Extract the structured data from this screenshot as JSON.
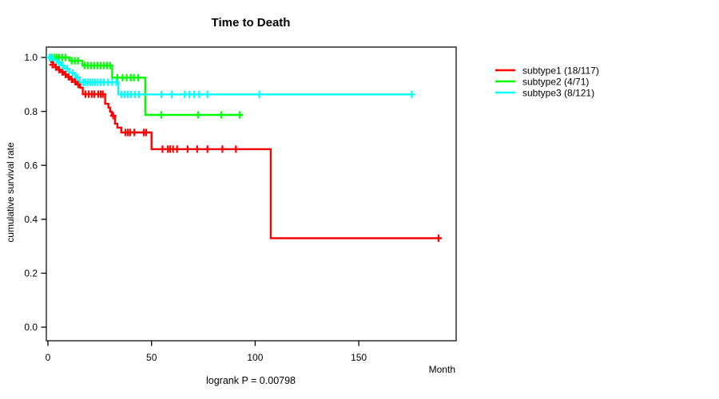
{
  "title": "Time to Death",
  "y_axis_label": "cumulative survival rate",
  "x_axis_label": "Month",
  "caption": "logrank P = 0.00798",
  "chart_data": {
    "type": "line",
    "subtype": "kaplan-meier-step",
    "title": "Time to Death",
    "xlabel": "Month",
    "ylabel": "cumulative survival rate",
    "annotation": "logrank P = 0.00798",
    "xlim": [
      0,
      197
    ],
    "ylim": [
      0,
      1.04
    ],
    "grid": false,
    "legend_position": "right-outside",
    "x_ticks": [
      {
        "value": 0,
        "label": "0"
      },
      {
        "value": 50,
        "label": "50"
      },
      {
        "value": 100,
        "label": "100"
      },
      {
        "value": 150,
        "label": "150"
      }
    ],
    "y_ticks": [
      {
        "value": 0.0,
        "label": "0.0"
      },
      {
        "value": 0.2,
        "label": "0.2"
      },
      {
        "value": 0.4,
        "label": "0.4"
      },
      {
        "value": 0.6,
        "label": "0.6"
      },
      {
        "value": 0.8,
        "label": "0.8"
      },
      {
        "value": 1.0,
        "label": "1.0"
      }
    ],
    "series": [
      {
        "id": "subtype1",
        "name": "subtype1 (18/117)",
        "color": "#ff0000",
        "end_month": 189.5,
        "steps": [
          [
            0,
            1.0
          ],
          [
            0.8,
            0.991
          ],
          [
            1.6,
            0.982
          ],
          [
            2.6,
            0.973
          ],
          [
            3.6,
            0.964
          ],
          [
            4.8,
            0.955
          ],
          [
            6,
            0.946
          ],
          [
            7.5,
            0.937
          ],
          [
            9,
            0.928
          ],
          [
            10.5,
            0.919
          ],
          [
            12,
            0.91
          ],
          [
            13.8,
            0.9
          ],
          [
            15.5,
            0.888
          ],
          [
            16.8,
            0.864
          ],
          [
            27.6,
            0.828
          ],
          [
            29.2,
            0.814
          ],
          [
            30,
            0.799
          ],
          [
            30.8,
            0.784
          ],
          [
            32.4,
            0.754
          ],
          [
            33.5,
            0.74
          ],
          [
            35.4,
            0.722
          ],
          [
            50,
            0.66
          ],
          [
            107.5,
            0.33
          ]
        ],
        "censors": [
          [
            2.2,
            0.973
          ],
          [
            3.9,
            0.964
          ],
          [
            5.4,
            0.955
          ],
          [
            7,
            0.946
          ],
          [
            8.5,
            0.937
          ],
          [
            10,
            0.928
          ],
          [
            11.5,
            0.919
          ],
          [
            13.2,
            0.91
          ],
          [
            14.6,
            0.9
          ],
          [
            18.1,
            0.864
          ],
          [
            19.7,
            0.864
          ],
          [
            21.2,
            0.864
          ],
          [
            22.4,
            0.864
          ],
          [
            24.3,
            0.864
          ],
          [
            25.5,
            0.864
          ],
          [
            26.5,
            0.864
          ],
          [
            31.5,
            0.784
          ],
          [
            37.4,
            0.722
          ],
          [
            38.6,
            0.722
          ],
          [
            39.7,
            0.722
          ],
          [
            41.7,
            0.722
          ],
          [
            46.3,
            0.722
          ],
          [
            47.4,
            0.722
          ],
          [
            55.3,
            0.66
          ],
          [
            57.9,
            0.66
          ],
          [
            59,
            0.66
          ],
          [
            60.4,
            0.66
          ],
          [
            62.3,
            0.66
          ],
          [
            67.4,
            0.66
          ],
          [
            72,
            0.66
          ],
          [
            77,
            0.66
          ],
          [
            84.2,
            0.66
          ],
          [
            90.7,
            0.66
          ],
          [
            188.5,
            0.33
          ]
        ]
      },
      {
        "id": "subtype2",
        "name": "subtype2 (4/71)",
        "color": "#00ff00",
        "end_month": 94,
        "steps": [
          [
            0,
            1.0
          ],
          [
            10.4,
            0.988
          ],
          [
            16.6,
            0.97
          ],
          [
            31,
            0.925
          ],
          [
            47,
            0.787
          ]
        ],
        "censors": [
          [
            0.8,
            1.0
          ],
          [
            2,
            1.0
          ],
          [
            3.2,
            1.0
          ],
          [
            4.3,
            1.0
          ],
          [
            5.4,
            1.0
          ],
          [
            6.9,
            1.0
          ],
          [
            8.5,
            1.0
          ],
          [
            11.5,
            0.988
          ],
          [
            13,
            0.988
          ],
          [
            14.5,
            0.988
          ],
          [
            17.7,
            0.97
          ],
          [
            19.2,
            0.97
          ],
          [
            20.8,
            0.97
          ],
          [
            22.3,
            0.97
          ],
          [
            23.9,
            0.97
          ],
          [
            25.4,
            0.97
          ],
          [
            27,
            0.97
          ],
          [
            28.5,
            0.97
          ],
          [
            30,
            0.97
          ],
          [
            33.5,
            0.925
          ],
          [
            36,
            0.925
          ],
          [
            38,
            0.925
          ],
          [
            40,
            0.925
          ],
          [
            41.5,
            0.925
          ],
          [
            43.6,
            0.925
          ],
          [
            54.7,
            0.787
          ],
          [
            72.5,
            0.787
          ],
          [
            83.7,
            0.787
          ],
          [
            92.6,
            0.787
          ]
        ],
        "note": ""
      },
      {
        "id": "subtype3",
        "name": "subtype3 (8/121)",
        "color": "#00ffff",
        "end_month": 176.5,
        "steps": [
          [
            0,
            1.0
          ],
          [
            2.6,
            0.991
          ],
          [
            4.3,
            0.982
          ],
          [
            6.2,
            0.97
          ],
          [
            8,
            0.958
          ],
          [
            10.4,
            0.943
          ],
          [
            13.1,
            0.926
          ],
          [
            15.4,
            0.908
          ],
          [
            34,
            0.863
          ]
        ],
        "censors": [
          [
            0.9,
            1.0
          ],
          [
            1.7,
            1.0
          ],
          [
            5.2,
            0.982
          ],
          [
            7.1,
            0.97
          ],
          [
            9.2,
            0.958
          ],
          [
            12,
            0.943
          ],
          [
            14.2,
            0.926
          ],
          [
            17,
            0.908
          ],
          [
            18,
            0.908
          ],
          [
            19.2,
            0.908
          ],
          [
            20.4,
            0.908
          ],
          [
            21.6,
            0.908
          ],
          [
            22.8,
            0.908
          ],
          [
            24,
            0.908
          ],
          [
            25.5,
            0.908
          ],
          [
            27,
            0.908
          ],
          [
            29,
            0.908
          ],
          [
            31,
            0.908
          ],
          [
            33,
            0.908
          ],
          [
            35.5,
            0.863
          ],
          [
            37,
            0.863
          ],
          [
            38.5,
            0.863
          ],
          [
            40,
            0.863
          ],
          [
            42,
            0.863
          ],
          [
            44,
            0.863
          ],
          [
            54.8,
            0.863
          ],
          [
            59.8,
            0.863
          ],
          [
            66,
            0.863
          ],
          [
            68.3,
            0.863
          ],
          [
            70.6,
            0.863
          ],
          [
            73,
            0.863
          ],
          [
            77,
            0.863
          ],
          [
            102,
            0.863
          ],
          [
            175.6,
            0.863
          ]
        ]
      }
    ]
  }
}
